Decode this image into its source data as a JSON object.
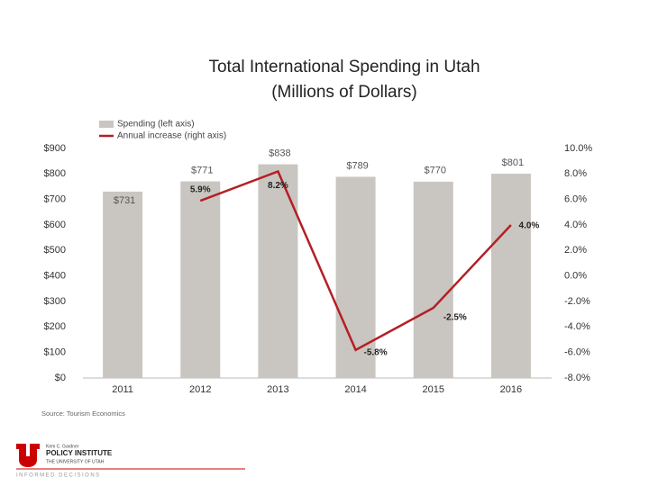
{
  "chart_data": {
    "type": "bar-line",
    "title": "Total International Spending in Utah",
    "subtitle": "(Millions of Dollars)",
    "categories": [
      "2011",
      "2012",
      "2013",
      "2014",
      "2015",
      "2016"
    ],
    "series": [
      {
        "name": "Spending (left axis)",
        "type": "bar",
        "color": "#c9c6c1",
        "values": [
          731,
          771,
          838,
          789,
          770,
          801
        ],
        "value_labels": [
          "$731",
          "$771",
          "$838",
          "$789",
          "$770",
          "$801"
        ]
      },
      {
        "name": "Annual increase (right axis)",
        "type": "line",
        "axis": "y2",
        "color": "#b51f24",
        "values": [
          null,
          5.9,
          8.2,
          -5.8,
          -2.5,
          4.0
        ],
        "value_labels": [
          null,
          "5.9%",
          "8.2%",
          "-5.8%",
          "-2.5%",
          "4.0%"
        ]
      }
    ],
    "ylim": [
      0,
      900
    ],
    "yticks": [
      {
        "value": 0,
        "label": "$0"
      },
      {
        "value": 100,
        "label": "$100"
      },
      {
        "value": 200,
        "label": "$200"
      },
      {
        "value": 300,
        "label": "$300"
      },
      {
        "value": 400,
        "label": "$400"
      },
      {
        "value": 500,
        "label": "$500"
      },
      {
        "value": 600,
        "label": "$600"
      },
      {
        "value": 700,
        "label": "$700"
      },
      {
        "value": 800,
        "label": "$800"
      },
      {
        "value": 900,
        "label": "$900"
      }
    ],
    "y2lim": [
      -8,
      10
    ],
    "y2ticks": [
      {
        "value": -8,
        "label": "-8.0%"
      },
      {
        "value": -6,
        "label": "-6.0%"
      },
      {
        "value": -4,
        "label": "-4.0%"
      },
      {
        "value": -2,
        "label": "-2.0%"
      },
      {
        "value": 0,
        "label": "0.0%"
      },
      {
        "value": 2,
        "label": "2.0%"
      },
      {
        "value": 4,
        "label": "4.0%"
      },
      {
        "value": 6,
        "label": "6.0%"
      },
      {
        "value": 8,
        "label": "8.0%"
      },
      {
        "value": 10,
        "label": "10.0%"
      }
    ],
    "legend": "top-left",
    "source": "Source: Tourism Economics"
  },
  "logo": {
    "line1": "Kem C. Gardner",
    "line2": "POLICY INSTITUTE",
    "line3": "THE UNIVERSITY OF UTAH",
    "tagline": "INFORMED DECISIONS"
  }
}
